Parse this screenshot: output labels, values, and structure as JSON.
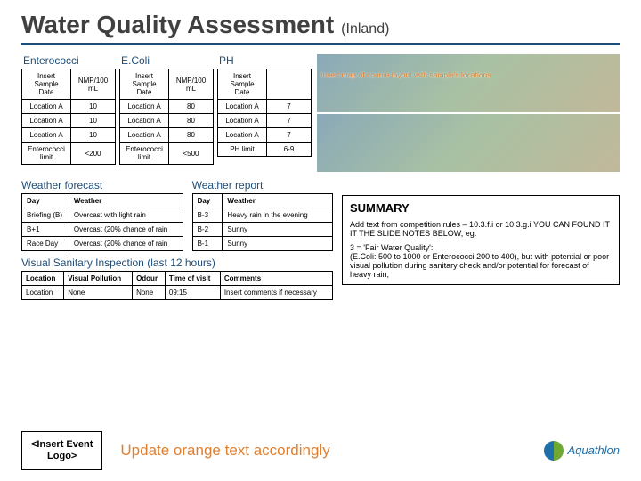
{
  "title": "Water Quality Assessment",
  "subtitle": "(Inland)",
  "underline_color": "#1f4e79",
  "samples": [
    {
      "name": "Enterococci",
      "headers": [
        "Insert Sample Date",
        "NMP/100 mL"
      ],
      "rows": [
        [
          "Location A",
          "10"
        ],
        [
          "Location A",
          "10"
        ],
        [
          "Location A",
          "10"
        ]
      ],
      "limit_label": "Enterococci limit",
      "limit_value": "<200"
    },
    {
      "name": "E.Coli",
      "headers": [
        "Insert Sample Date",
        "NMP/100 mL"
      ],
      "rows": [
        [
          "Location A",
          "80"
        ],
        [
          "Location A",
          "80"
        ],
        [
          "Location A",
          "80"
        ]
      ],
      "limit_label": "Enterococci limit",
      "limit_value": "<500"
    },
    {
      "name": "PH",
      "headers": [
        "Insert Sample Date",
        ""
      ],
      "rows": [
        [
          "Location A",
          "7"
        ],
        [
          "Location A",
          "7"
        ],
        [
          "Location A",
          "7"
        ]
      ],
      "limit_label": "PH limit",
      "limit_value": "6-9"
    }
  ],
  "map_overlay": "Insert map of course layout with sample's locations",
  "weather_forecast": {
    "title": "Weather forecast",
    "headers": [
      "Day",
      "Weather"
    ],
    "rows": [
      [
        "Briefing (B)",
        "Overcast with light rain"
      ],
      [
        "B+1",
        "Overcast (20% chance of rain"
      ],
      [
        "Race Day",
        "Overcast (20% chance of rain"
      ]
    ]
  },
  "weather_report": {
    "title": "Weather report",
    "headers": [
      "Day",
      "Weather"
    ],
    "rows": [
      [
        "B-3",
        "Heavy rain in the evening"
      ],
      [
        "B-2",
        "Sunny"
      ],
      [
        "B-1",
        "Sunny"
      ]
    ]
  },
  "vsi": {
    "title": "Visual Sanitary Inspection (last 12 hours)",
    "headers": [
      "Location",
      "Visual Pollution",
      "Odour",
      "Time of visit",
      "Comments"
    ],
    "rows": [
      [
        "Location",
        "None",
        "None",
        "09:15",
        "Insert comments if necessary"
      ]
    ]
  },
  "summary": {
    "title": "SUMMARY",
    "line1": "Add text from competition rules – 10.3.f.i or 10.3.g.i YOU CAN FOUND IT IT THE SLIDE NOTES BELOW, eg.",
    "line2": "3 = 'Fair Water Quality':",
    "line3": "(E.Coli: 500 to 1000 or Enterococci 200 to 400), but with potential or poor visual pollution during sanitary check and/or potential for forecast of heavy rain;"
  },
  "footer": {
    "event_logo_l1": "<Insert Event",
    "event_logo_l2": "Logo>",
    "orange": "Update orange text accordingly",
    "brand": "Aquathlon"
  }
}
